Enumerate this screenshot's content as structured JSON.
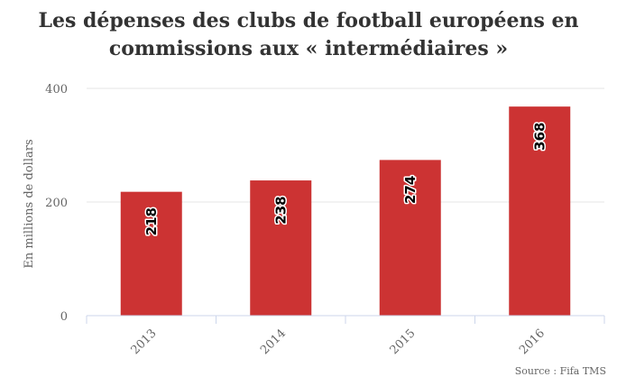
{
  "title": "Les dépenses des clubs de football européens en commissions aux « intermédiaires »",
  "source": "Source : Fifa TMS",
  "colors": {
    "bar": "#cc3333",
    "grid": "#e6e6e6",
    "axis": "#ccd6eb",
    "tick_label": "#666666",
    "data_label_fill": "#000000",
    "data_label_stroke": "#ffffff"
  },
  "chart_data": {
    "type": "bar",
    "categories": [
      "2013",
      "2014",
      "2015",
      "2016"
    ],
    "values": [
      218,
      238,
      274,
      368
    ],
    "data_labels": [
      "218",
      "238",
      "274",
      "368"
    ],
    "title": "Les dépenses des clubs de football européens en commissions aux « intermédiaires »",
    "xlabel": "",
    "ylabel": "En millions de dollars",
    "ylim": [
      0,
      400
    ],
    "yticks": [
      0,
      200,
      400
    ],
    "ytick_labels": [
      "0",
      "200",
      "400"
    ],
    "grid": true,
    "legend": "none"
  }
}
